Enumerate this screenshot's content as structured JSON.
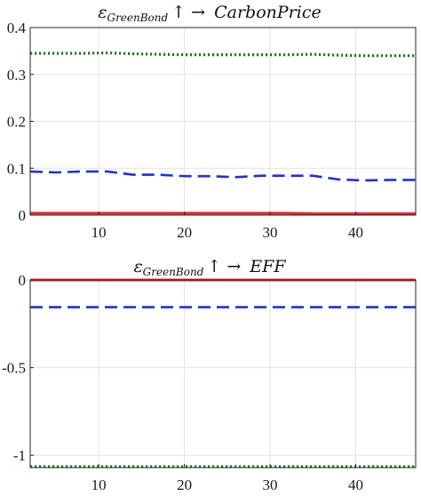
{
  "chart_data": [
    {
      "type": "line",
      "title_symbol": "ε",
      "title_subscript": "GreenBond",
      "title_arrows": "↑ →",
      "title_target": "CarbonPrice",
      "xlim": [
        2,
        47
      ],
      "ylim": [
        0,
        0.4
      ],
      "xticks": [
        10,
        20,
        30,
        40
      ],
      "yticks": [
        0,
        0.1,
        0.2,
        0.3,
        0.4
      ],
      "ytick_labels": [
        "0",
        "0.1",
        "0.2",
        "0.3",
        "0.4"
      ],
      "grid": true,
      "x": [
        2,
        5,
        8,
        11,
        14,
        17,
        20,
        23,
        26,
        29,
        32,
        35,
        38,
        41,
        44,
        47
      ],
      "series": [
        {
          "color": "#e8232a",
          "style": "solid",
          "values": [
            0.004,
            0.004,
            0.004,
            0.004,
            0.004,
            0.004,
            0.004,
            0.004,
            0.004,
            0.004,
            0.004,
            0.003,
            0.003,
            0.003,
            0.003,
            0.003
          ]
        },
        {
          "color": "#1f2fe0",
          "style": "dashed",
          "values": [
            0.093,
            0.091,
            0.093,
            0.093,
            0.086,
            0.086,
            0.083,
            0.083,
            0.081,
            0.084,
            0.084,
            0.084,
            0.076,
            0.074,
            0.075,
            0.075
          ]
        },
        {
          "color": "#1e7a1e",
          "style": "dotted",
          "values": [
            0.345,
            0.345,
            0.345,
            0.346,
            0.344,
            0.343,
            0.342,
            0.342,
            0.342,
            0.342,
            0.342,
            0.343,
            0.341,
            0.34,
            0.34,
            0.34
          ]
        }
      ]
    },
    {
      "type": "line",
      "title_symbol": "ε",
      "title_subscript": "GreenBond",
      "title_arrows": "↑ →",
      "title_target": "EFF",
      "xlim": [
        2,
        47
      ],
      "ylim": [
        -1.07,
        0
      ],
      "xticks": [
        10,
        20,
        30,
        40
      ],
      "yticks": [
        0,
        -0.5,
        -1
      ],
      "ytick_labels": [
        "0",
        "-0.5",
        "-1"
      ],
      "grid": true,
      "x": [
        2,
        47
      ],
      "series": [
        {
          "color": "#e8232a",
          "style": "solid",
          "values": [
            0.0,
            0.0
          ]
        },
        {
          "color": "#1f2fe0",
          "style": "dashed",
          "values": [
            -0.155,
            -0.155
          ]
        },
        {
          "color": "#1e7a1e",
          "style": "dotted",
          "values": [
            -1.065,
            -1.065
          ]
        }
      ]
    }
  ]
}
